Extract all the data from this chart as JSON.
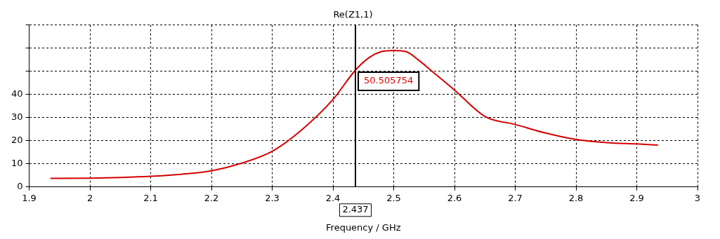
{
  "chart_data": {
    "type": "line",
    "title": "Re(Z1,1)",
    "xlabel": "Frequency / GHz",
    "x": [
      1.935,
      2.0,
      2.05,
      2.1,
      2.15,
      2.2,
      2.25,
      2.3,
      2.35,
      2.4,
      2.437,
      2.46,
      2.48,
      2.5,
      2.52,
      2.54,
      2.563,
      2.6,
      2.65,
      2.7,
      2.75,
      2.8,
      2.85,
      2.9,
      2.935
    ],
    "series": [
      {
        "color": "#d40000",
        "values": [
          3.7,
          3.8,
          4.1,
          4.6,
          5.5,
          7,
          10.3,
          15.4,
          25,
          37.8,
          50.5,
          56,
          58.5,
          59,
          58.5,
          55,
          50,
          41.9,
          30.5,
          27,
          23.3,
          20.5,
          19.2,
          18.6,
          18.1
        ]
      }
    ],
    "xlim": [
      1.9,
      3
    ],
    "xticks": [
      1.9,
      2,
      2.1,
      2.2,
      2.3,
      2.4,
      2.5,
      2.6,
      2.7,
      2.8,
      2.9,
      3
    ],
    "ylim": [
      0,
      70
    ],
    "yticks": [
      0,
      10,
      20,
      30,
      40,
      {
        "value": 50,
        "label": null
      },
      {
        "value": 60,
        "label": null
      },
      {
        "value": 70,
        "label": null
      }
    ],
    "grid": true,
    "line_style": "solid",
    "marker": "none",
    "ref_lines": [
      {
        "axis": "x",
        "value": 2.437,
        "label": "2.437",
        "color": "#000000"
      }
    ],
    "annotations": [
      {
        "text": "50.505754",
        "x": 2.437,
        "y": 50.505754
      }
    ]
  }
}
